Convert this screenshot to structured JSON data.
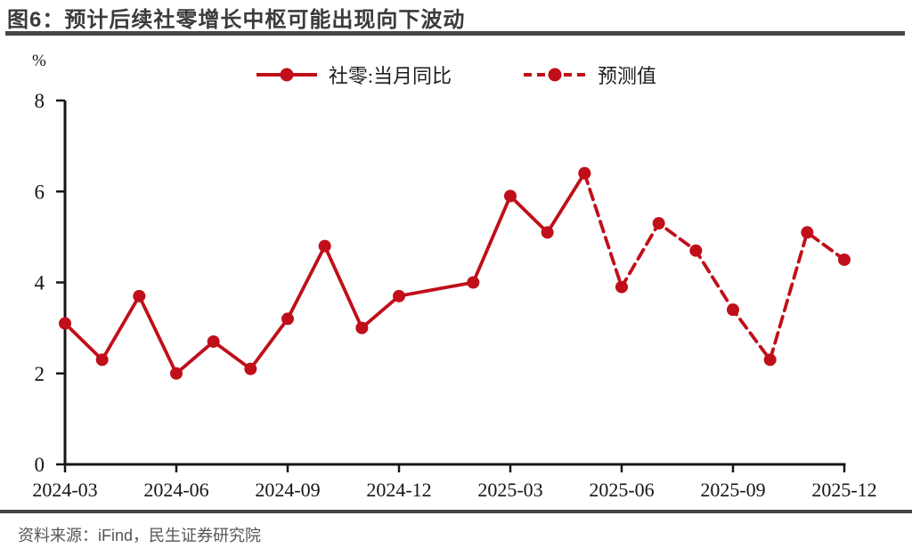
{
  "figure": {
    "title": "图6：预计后续社零增长中枢可能出现向下波动"
  },
  "chart_data": {
    "type": "line",
    "title": "预计后续社零增长中枢可能出现向下波动",
    "unit": "%",
    "ylim": [
      0,
      8
    ],
    "yticks": [
      0,
      2,
      4,
      6,
      8
    ],
    "xticks": [
      "2024-03",
      "2024-06",
      "2024-09",
      "2024-12",
      "2025-03",
      "2025-06",
      "2025-09",
      "2025-12"
    ],
    "grid": "off",
    "legend_position": "top-center",
    "series": [
      {
        "name": "社零:当月同比",
        "style": "solid",
        "points": [
          [
            "2024-03",
            3.1
          ],
          [
            "2024-04",
            2.3
          ],
          [
            "2024-05",
            3.7
          ],
          [
            "2024-06",
            2.0
          ],
          [
            "2024-07",
            2.7
          ],
          [
            "2024-08",
            2.1
          ],
          [
            "2024-09",
            3.2
          ],
          [
            "2024-10",
            4.8
          ],
          [
            "2024-11",
            3.0
          ],
          [
            "2024-12",
            3.7
          ],
          [
            "2025-02",
            4.0
          ],
          [
            "2025-03",
            5.9
          ],
          [
            "2025-04",
            5.1
          ],
          [
            "2025-05",
            6.4
          ]
        ]
      },
      {
        "name": "预测值",
        "style": "dashed",
        "points": [
          [
            "2025-05",
            6.4
          ],
          [
            "2025-06",
            3.9
          ],
          [
            "2025-07",
            5.3
          ],
          [
            "2025-08",
            4.7
          ],
          [
            "2025-09",
            3.4
          ],
          [
            "2025-10",
            2.3
          ],
          [
            "2025-11",
            5.1
          ],
          [
            "2025-12",
            4.5
          ]
        ]
      }
    ]
  },
  "footer": {
    "source": "资料来源：iFind，民生证券研究院"
  },
  "colors": {
    "line_red": "#C00F1A",
    "title_gray": "#3B3B3B",
    "rule_gray": "#464646",
    "axis_ink": "#161616",
    "source_gray": "#565656"
  }
}
